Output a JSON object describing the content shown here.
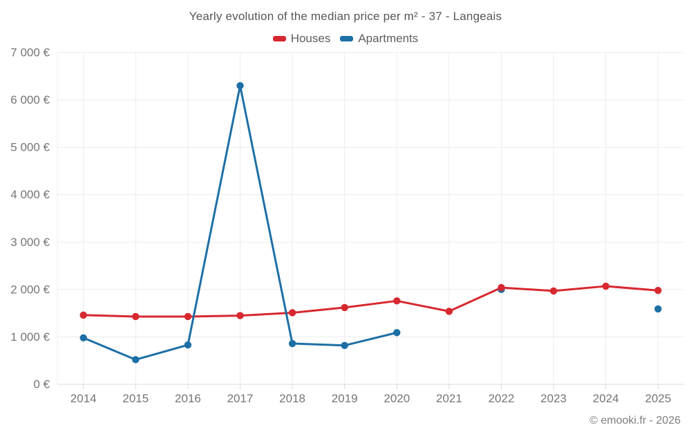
{
  "chart_data": {
    "type": "line",
    "title": "Yearly evolution of the median price per m² - 37 - Langeais",
    "x": [
      "2014",
      "2015",
      "2016",
      "2017",
      "2018",
      "2019",
      "2020",
      "2021",
      "2022",
      "2023",
      "2024",
      "2025"
    ],
    "series": [
      {
        "name": "Houses",
        "color": "#d7282f",
        "values": [
          1460,
          1430,
          1430,
          1450,
          1510,
          1620,
          1760,
          1540,
          2040,
          1970,
          2070,
          1980
        ]
      },
      {
        "name": "Apartments",
        "color": "#1d6fa5",
        "values": [
          980,
          520,
          830,
          6300,
          860,
          820,
          1090,
          null,
          2000,
          null,
          null,
          1590
        ]
      }
    ],
    "xlabel": "",
    "ylabel": "",
    "ylim": [
      0,
      7000
    ],
    "ytick_step": 1000,
    "ytick_labels": [
      "0 €",
      "1 000 €",
      "2 000 €",
      "3 000 €",
      "4 000 €",
      "5 000 €",
      "6 000 €",
      "7 000 €"
    ],
    "grid": true,
    "legend_position": "top"
  },
  "footer": {
    "copyright": "© emooki.fr - 2026"
  },
  "colors": {
    "background": "#ffffff",
    "gridline": "#ececec",
    "baseline": "#dcdcdc",
    "tick": "#d9d9d9",
    "tick_text": "#757575",
    "title_text": "#565656"
  }
}
